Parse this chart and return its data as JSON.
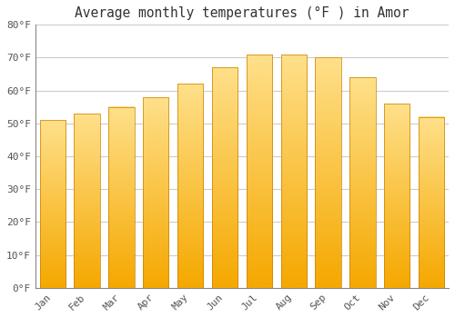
{
  "title": "Average monthly temperatures (°F ) in Amor",
  "months": [
    "Jan",
    "Feb",
    "Mar",
    "Apr",
    "May",
    "Jun",
    "Jul",
    "Aug",
    "Sep",
    "Oct",
    "Nov",
    "Dec"
  ],
  "values": [
    51,
    53,
    55,
    58,
    62,
    67,
    71,
    71,
    70,
    64,
    56,
    52
  ],
  "bar_color_bottom": "#F5A800",
  "bar_color_top": "#FFE08A",
  "bar_edge_color": "#C88000",
  "background_color": "#FFFFFF",
  "plot_bg_color": "#FFFFFF",
  "grid_color": "#CCCCCC",
  "text_color": "#555555",
  "title_color": "#333333",
  "ylim": [
    0,
    80
  ],
  "yticks": [
    0,
    10,
    20,
    30,
    40,
    50,
    60,
    70,
    80
  ],
  "bar_width": 0.75,
  "title_fontsize": 10.5,
  "tick_fontsize": 8
}
